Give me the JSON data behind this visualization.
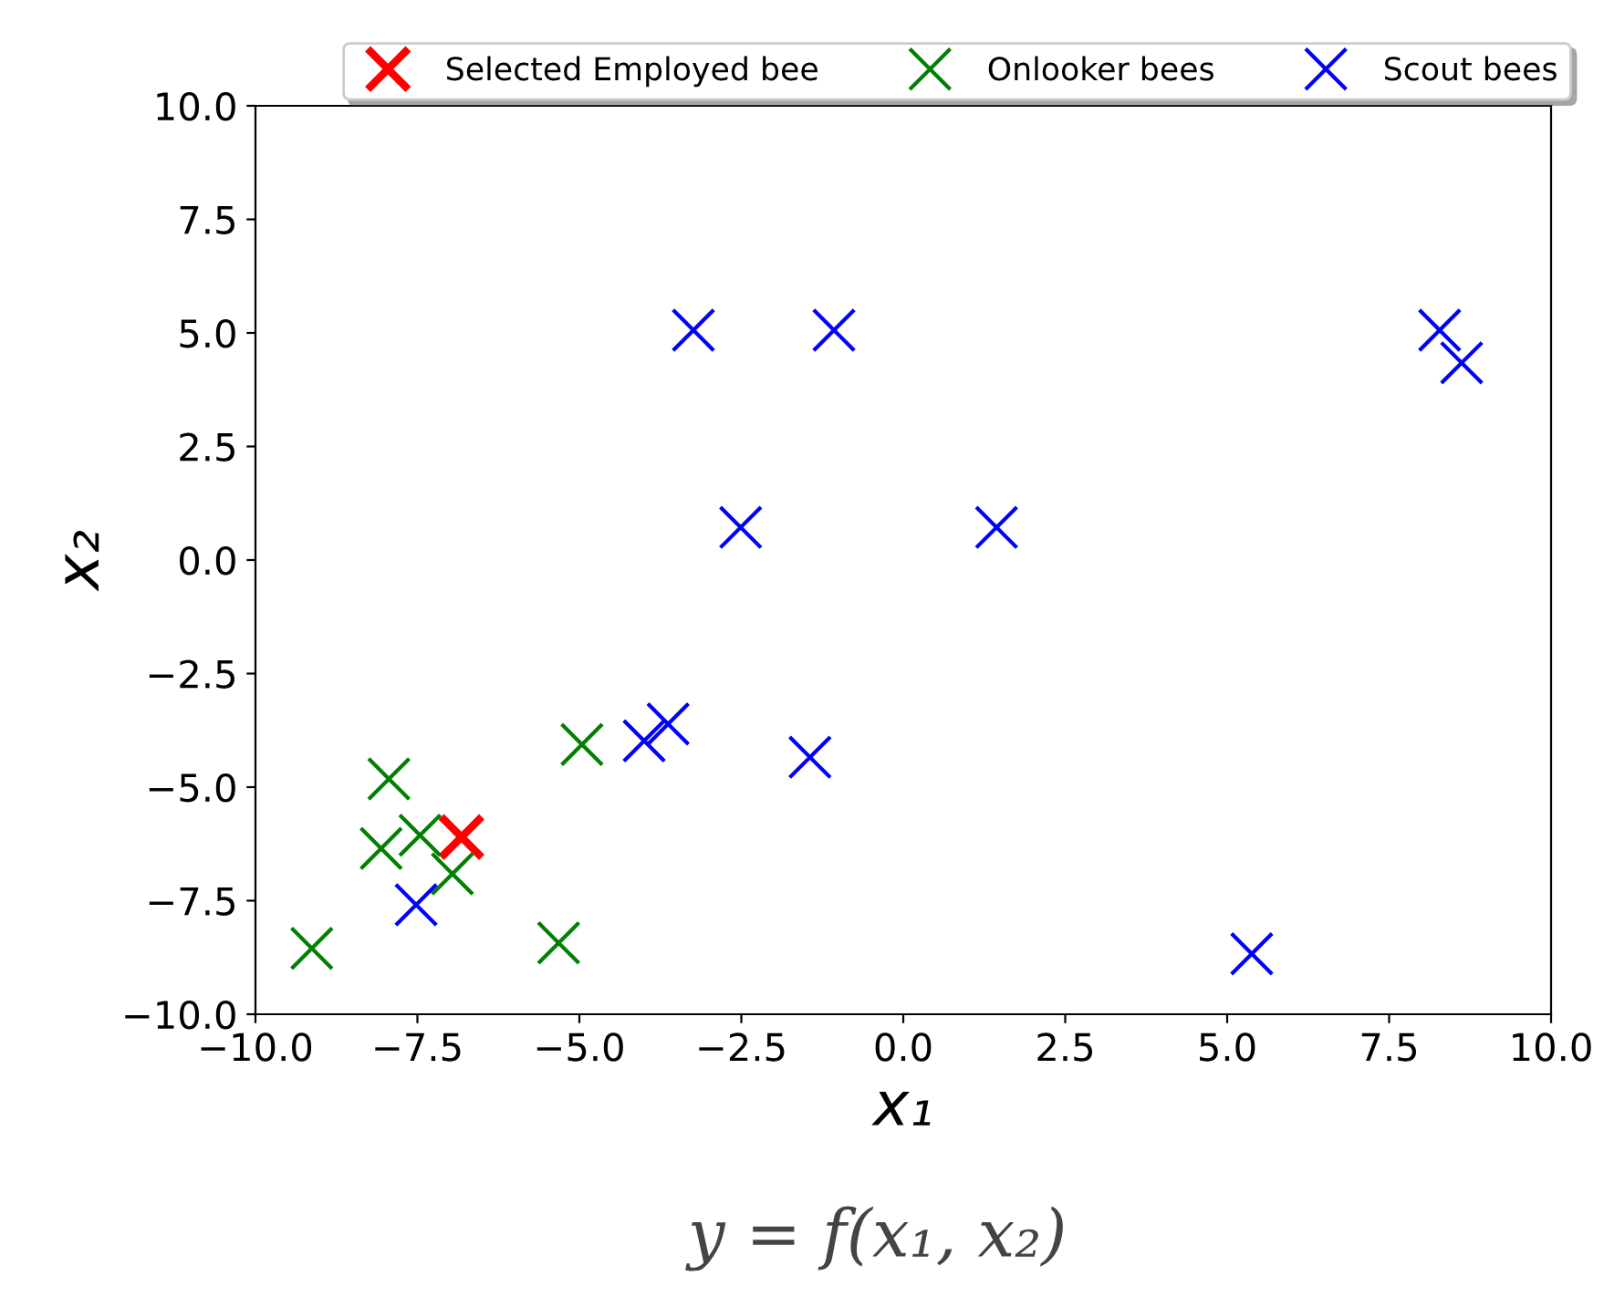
{
  "chart_data": {
    "type": "scatter",
    "xlabel": "x₁",
    "ylabel": "x₂",
    "xlim": [
      -10,
      10
    ],
    "ylim": [
      -10,
      10
    ],
    "xticks": [
      {
        "value": -10,
        "label": "−10.0"
      },
      {
        "value": -7.5,
        "label": "−7.5"
      },
      {
        "value": -5,
        "label": "−5.0"
      },
      {
        "value": -2.5,
        "label": "−2.5"
      },
      {
        "value": 0,
        "label": "0.0"
      },
      {
        "value": 2.5,
        "label": "2.5"
      },
      {
        "value": 5,
        "label": "5.0"
      },
      {
        "value": 7.5,
        "label": "7.5"
      },
      {
        "value": 10,
        "label": "10.0"
      }
    ],
    "yticks": [
      {
        "value": -10,
        "label": "−10.0"
      },
      {
        "value": -7.5,
        "label": "−7.5"
      },
      {
        "value": -5,
        "label": "−5.0"
      },
      {
        "value": -2.5,
        "label": "−2.5"
      },
      {
        "value": 0,
        "label": "0.0"
      },
      {
        "value": 2.5,
        "label": "2.5"
      },
      {
        "value": 5,
        "label": "5.0"
      },
      {
        "value": 7.5,
        "label": "7.5"
      },
      {
        "value": 10,
        "label": "10.0"
      }
    ],
    "marker": "cross",
    "grid": false,
    "legend": "top",
    "annotations": [
      "y = f(x₁, x₂)"
    ],
    "series": [
      {
        "name": "Selected Employed bee",
        "color": "#ff0000",
        "x": [
          -6.82
        ],
        "values": [
          -6.1
        ]
      },
      {
        "name": "Onlooker bees",
        "color": "#008000",
        "x": [
          -7.94,
          -8.06,
          -7.46,
          -6.96,
          -4.96,
          -5.32,
          -9.13
        ],
        "values": [
          -4.82,
          -6.35,
          -6.06,
          -6.91,
          -4.06,
          -8.43,
          -8.55
        ]
      },
      {
        "name": "Scout bees",
        "color": "#0000ff",
        "x": [
          -7.52,
          -4.0,
          -3.63,
          -3.24,
          -1.07,
          -2.51,
          1.44,
          -1.44,
          5.38,
          8.28,
          8.62
        ],
        "values": [
          -7.59,
          -3.98,
          -3.61,
          5.06,
          5.06,
          0.72,
          0.72,
          -4.34,
          -8.67,
          5.06,
          4.34
        ]
      }
    ]
  }
}
